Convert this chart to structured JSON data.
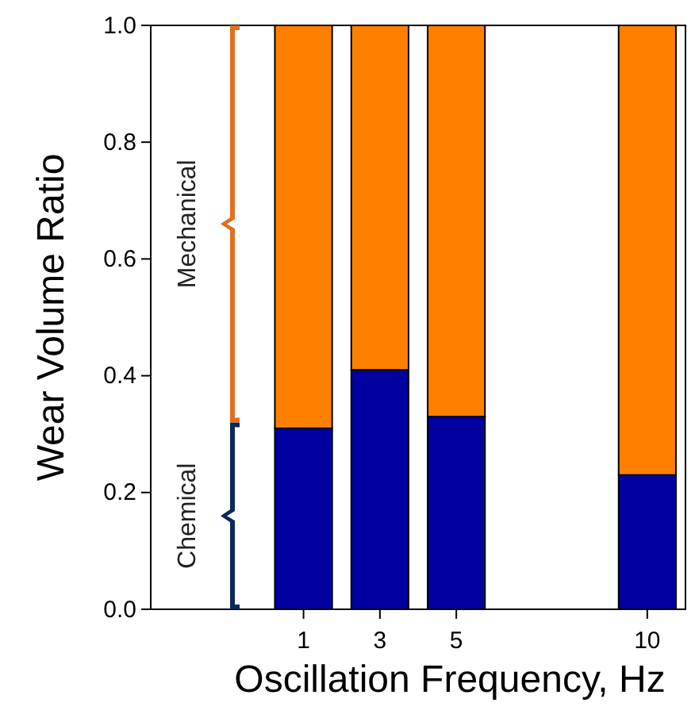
{
  "chart_data": {
    "type": "bar",
    "stacked": true,
    "xlabel": "Oscillation Frequency, Hz",
    "ylabel": "Wear Volume Ratio",
    "x": [
      1,
      3,
      5,
      10
    ],
    "series": [
      {
        "name": "Chemical",
        "color": "#0000a0",
        "values": [
          0.31,
          0.41,
          0.33,
          0.23
        ]
      },
      {
        "name": "Mechanical",
        "color": "#ff8000",
        "values": [
          0.69,
          0.59,
          0.67,
          0.77
        ]
      }
    ],
    "xlim": [
      -3,
      11
    ],
    "xticks": [
      1,
      3,
      5,
      10
    ],
    "ylim": [
      0,
      1
    ],
    "yticks": [
      {
        "value": 0,
        "label": "0.0"
      },
      {
        "value": 0.2,
        "label": "0.2"
      },
      {
        "value": 0.4,
        "label": "0.4"
      },
      {
        "value": 0.6,
        "label": "0.6"
      },
      {
        "value": 0.8,
        "label": "0.8"
      },
      {
        "value": 1,
        "label": "1.0"
      }
    ],
    "grid": false
  }
}
